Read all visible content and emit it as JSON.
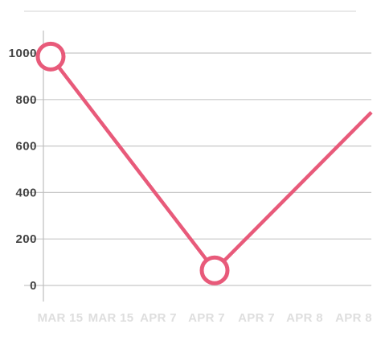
{
  "chart_data": {
    "type": "line",
    "title": "",
    "xlabel": "",
    "ylabel": "",
    "x_tick_labels": [
      "MAR 15",
      "MAR 15",
      "APR 7",
      "APR 7",
      "APR 7",
      "APR 8",
      "APR 8"
    ],
    "y_tick_labels": [
      "0",
      "200",
      "400",
      "600",
      "800",
      "1000"
    ],
    "y_ticks": [
      0,
      200,
      400,
      600,
      800,
      1000
    ],
    "ylim": [
      -70,
      1100
    ],
    "grid": true,
    "legend": "none",
    "series": [
      {
        "color": "#e85a7a",
        "points": [
          {
            "x": "MAR 15",
            "y": 985,
            "marker": true
          },
          {
            "x": "APR 7",
            "y": 65,
            "marker": true
          },
          {
            "x": "APR 8",
            "y": 745,
            "marker": false
          }
        ]
      }
    ],
    "colors": {
      "line": "#e85a7a",
      "marker_fill": "#ffffff",
      "grid": "#c8c8c8",
      "axis": "#bdbdbd",
      "top_rule": "#dcdcdc",
      "y_tick_text": "#444444",
      "x_tick_text": "#dedede"
    }
  }
}
